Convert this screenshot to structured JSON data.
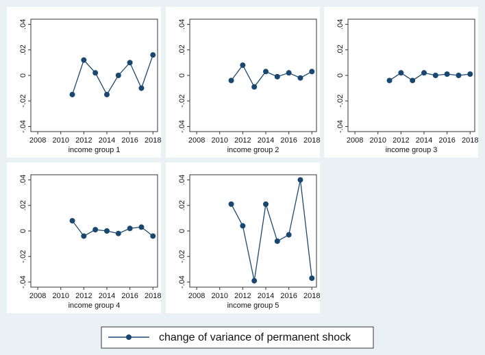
{
  "chart_data": {
    "type": "line",
    "series_name": "change of variance of permanent shock",
    "color": "#1a476f",
    "xlim": [
      2007.4,
      2018.4
    ],
    "xticks": [
      2008,
      2010,
      2012,
      2014,
      2016,
      2018
    ],
    "ylim": [
      -0.044,
      0.044
    ],
    "yticks": [
      {
        "value": -0.04,
        "label": "-.04"
      },
      {
        "value": -0.02,
        "label": "-.02"
      },
      0,
      {
        "value": 0.02,
        "label": ".02"
      },
      {
        "value": 0.04,
        "label": ".04"
      }
    ],
    "panels": [
      {
        "title": "income group 1",
        "x": [
          2011,
          2012,
          2013,
          2014,
          2015,
          2016,
          2017,
          2018
        ],
        "values": [
          -0.015,
          0.012,
          0.002,
          -0.015,
          0,
          0.01,
          -0.01,
          0.016
        ]
      },
      {
        "title": "income group 2",
        "x": [
          2011,
          2012,
          2013,
          2014,
          2015,
          2016,
          2017,
          2018
        ],
        "values": [
          -0.004,
          0.008,
          -0.009,
          0.003,
          -0.001,
          0.002,
          -0.002,
          0.003
        ]
      },
      {
        "title": "income group 3",
        "x": [
          2011,
          2012,
          2013,
          2014,
          2015,
          2016,
          2017,
          2018
        ],
        "values": [
          -0.004,
          0.002,
          -0.004,
          0.002,
          0,
          0.001,
          0,
          0.001
        ]
      },
      {
        "title": "income group 4",
        "x": [
          2011,
          2012,
          2013,
          2014,
          2015,
          2016,
          2017,
          2018
        ],
        "values": [
          0.008,
          -0.004,
          0.001,
          0,
          -0.002,
          0.002,
          0.003,
          -0.004
        ]
      },
      {
        "title": "income group 5",
        "x": [
          2011,
          2012,
          2013,
          2014,
          2015,
          2016,
          2017,
          2018
        ],
        "values": [
          0.021,
          0.004,
          -0.039,
          0.021,
          -0.008,
          -0.003,
          0.04,
          -0.037
        ]
      }
    ]
  }
}
